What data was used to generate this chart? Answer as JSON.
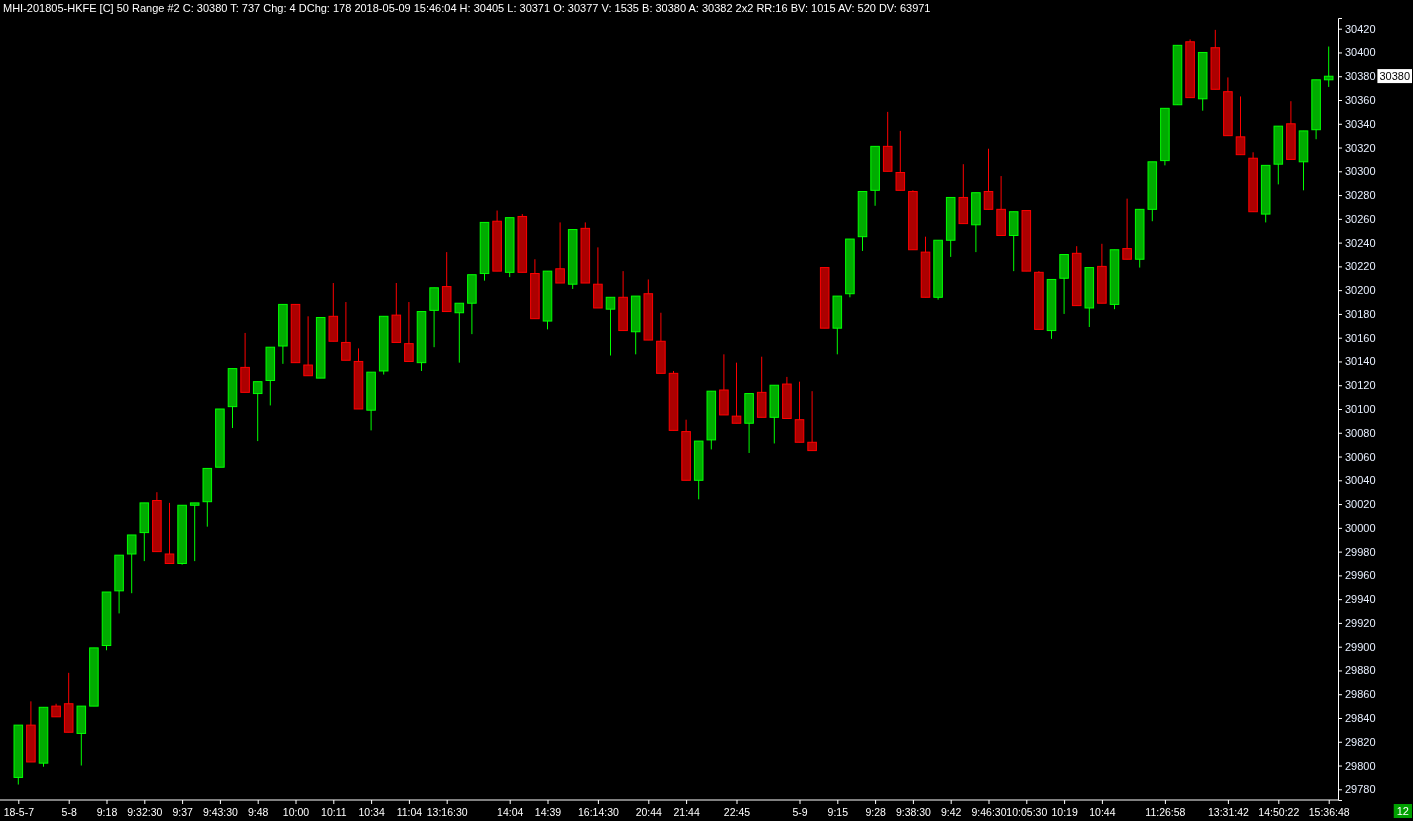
{
  "chart_data": {
    "type": "candlestick",
    "title": "MHI-201805-HKFE [C]  50 Range  #2 C: 30380  T: 737  Chg: 4  DChg: 178  2018-05-09 15:46:04  H: 30405  L: 30371  O: 30377  V: 1535  B: 30380  A: 30382  2x2  RR:16  BV: 1015  AV: 520  DV: 63971",
    "categories": [
      "18-5-7",
      null,
      null,
      null,
      "5-8",
      null,
      null,
      "9:18",
      null,
      null,
      "9:32:30",
      null,
      null,
      "9:37",
      null,
      null,
      "9:43:30",
      null,
      null,
      "9:48",
      null,
      null,
      "10:00",
      null,
      null,
      "10:11",
      null,
      null,
      "10:34",
      null,
      null,
      "11:04",
      null,
      null,
      "13:16:30",
      null,
      null,
      null,
      null,
      "14:04",
      null,
      null,
      "14:39",
      null,
      null,
      null,
      "16:14:30",
      null,
      null,
      null,
      "20:44",
      null,
      null,
      "21:44",
      null,
      null,
      null,
      "22:45",
      null,
      null,
      null,
      null,
      "5-9",
      null,
      null,
      "9:15",
      null,
      null,
      "9:28",
      null,
      null,
      "9:38:30",
      null,
      null,
      "9:42",
      null,
      null,
      "9:46:30",
      null,
      null,
      "10:05:30",
      null,
      null,
      "10:19",
      null,
      null,
      "10:44",
      null,
      null,
      null,
      null,
      "11:26:58",
      null,
      null,
      null,
      null,
      "13:31:42",
      null,
      null,
      null,
      "14:50:22",
      null,
      null,
      null,
      "15:36:48"
    ],
    "ohlc": [
      [
        29790,
        29834,
        29784,
        29834
      ],
      [
        29834,
        29854,
        29803,
        29803
      ],
      [
        29802,
        29849,
        29799,
        29849
      ],
      [
        29850,
        29852,
        29841,
        29841
      ],
      [
        29852,
        29878,
        29828,
        29828
      ],
      [
        29827,
        29850,
        29800,
        29850
      ],
      [
        29850,
        29899,
        29850,
        29899
      ],
      [
        29901,
        29946,
        29897,
        29946
      ],
      [
        29947,
        29977,
        29928,
        29977
      ],
      [
        29978,
        29994,
        29945,
        29994
      ],
      [
        29996,
        30021,
        29972,
        30021
      ],
      [
        30023,
        30030,
        29980,
        29980
      ],
      [
        29978,
        30021,
        29970,
        29970
      ],
      [
        29970,
        30019,
        29969,
        30019
      ],
      [
        30019,
        30021,
        29972,
        30021
      ],
      [
        30022,
        30050,
        30001,
        30050
      ],
      [
        30051,
        30100,
        30051,
        30100
      ],
      [
        30102,
        30134,
        30084,
        30134
      ],
      [
        30135,
        30164,
        30114,
        30114
      ],
      [
        30113,
        30123,
        30073,
        30123
      ],
      [
        30124,
        30152,
        30103,
        30152
      ],
      [
        30153,
        30188,
        30138,
        30188
      ],
      [
        30188,
        30188,
        30139,
        30139
      ],
      [
        30137,
        30178,
        30128,
        30128
      ],
      [
        30126,
        30177,
        30126,
        30177
      ],
      [
        30178,
        30206,
        30157,
        30157
      ],
      [
        30156,
        30190,
        30141,
        30141
      ],
      [
        30140,
        30151,
        30100,
        30100
      ],
      [
        30099,
        30131,
        30082,
        30131
      ],
      [
        30132,
        30178,
        30129,
        30178
      ],
      [
        30179,
        30206,
        30156,
        30156
      ],
      [
        30155,
        30190,
        30140,
        30140
      ],
      [
        30139,
        30182,
        30132,
        30182
      ],
      [
        30183,
        30202,
        30152,
        30202
      ],
      [
        30203,
        30232,
        30182,
        30182
      ],
      [
        30181,
        30189,
        30139,
        30189
      ],
      [
        30189,
        30213,
        30163,
        30213
      ],
      [
        30214,
        30257,
        30208,
        30257
      ],
      [
        30258,
        30267,
        30216,
        30216
      ],
      [
        30215,
        30261,
        30211,
        30261
      ],
      [
        30262,
        30264,
        30215,
        30215
      ],
      [
        30214,
        30226,
        30176,
        30176
      ],
      [
        30174,
        30216,
        30167,
        30216
      ],
      [
        30218,
        30257,
        30206,
        30206
      ],
      [
        30205,
        30251,
        30201,
        30251
      ],
      [
        30252,
        30257,
        30206,
        30206
      ],
      [
        30205,
        30236,
        30185,
        30185
      ],
      [
        30184,
        30194,
        30145,
        30194
      ],
      [
        30194,
        30216,
        30166,
        30166
      ],
      [
        30165,
        30195,
        30146,
        30195
      ],
      [
        30197,
        30209,
        30158,
        30158
      ],
      [
        30157,
        30181,
        30130,
        30130
      ],
      [
        30130,
        30132,
        30082,
        30082
      ],
      [
        30081,
        30091,
        30040,
        30040
      ],
      [
        30040,
        30073,
        30024,
        30073
      ],
      [
        30074,
        30115,
        30066,
        30115
      ],
      [
        30116,
        30146,
        30095,
        30095
      ],
      [
        30094,
        30139,
        30088,
        30088
      ],
      [
        30088,
        30113,
        30063,
        30113
      ],
      [
        30114,
        30144,
        30093,
        30093
      ],
      [
        30093,
        30120,
        30071,
        30120
      ],
      [
        30121,
        30127,
        30092,
        30092
      ],
      [
        30091,
        30123,
        30072,
        30072
      ],
      [
        30072,
        30115,
        30065,
        30065
      ],
      [
        30219,
        30219,
        30168,
        30168
      ],
      [
        30168,
        30195,
        30146,
        30195
      ],
      [
        30197,
        30243,
        30194,
        30243
      ],
      [
        30245,
        30283,
        30233,
        30283
      ],
      [
        30284,
        30321,
        30271,
        30321
      ],
      [
        30321,
        30350,
        30300,
        30300
      ],
      [
        30299,
        30334,
        30284,
        30284
      ],
      [
        30283,
        30284,
        30234,
        30234
      ],
      [
        30232,
        30245,
        30194,
        30194
      ],
      [
        30194,
        30242,
        30192,
        30242
      ],
      [
        30242,
        30278,
        30228,
        30278
      ],
      [
        30278,
        30306,
        30256,
        30256
      ],
      [
        30255,
        30282,
        30232,
        30282
      ],
      [
        30283,
        30319,
        30268,
        30268
      ],
      [
        30268,
        30296,
        30246,
        30246
      ],
      [
        30246,
        30266,
        30216,
        30266
      ],
      [
        30267,
        30267,
        30216,
        30216
      ],
      [
        30215,
        30216,
        30167,
        30167
      ],
      [
        30166,
        30209,
        30159,
        30209
      ],
      [
        30210,
        30230,
        30180,
        30230
      ],
      [
        30231,
        30237,
        30187,
        30187
      ],
      [
        30185,
        30219,
        30169,
        30219
      ],
      [
        30220,
        30239,
        30189,
        30189
      ],
      [
        30188,
        30234,
        30184,
        30234
      ],
      [
        30235,
        30277,
        30226,
        30226
      ],
      [
        30226,
        30268,
        30219,
        30268
      ],
      [
        30268,
        30308,
        30258,
        30308
      ],
      [
        30309,
        30353,
        30305,
        30353
      ],
      [
        30356,
        30406,
        30356,
        30406
      ],
      [
        30409,
        30411,
        30362,
        30362
      ],
      [
        30361,
        30400,
        30351,
        30400
      ],
      [
        30404,
        30419,
        30369,
        30369
      ],
      [
        30367,
        30379,
        30330,
        30330
      ],
      [
        30329,
        30363,
        30314,
        30314
      ],
      [
        30311,
        30316,
        30266,
        30266
      ],
      [
        30264,
        30305,
        30257,
        30305
      ],
      [
        30306,
        30338,
        30289,
        30338
      ],
      [
        30340,
        30359,
        30310,
        30310
      ],
      [
        30308,
        30334,
        30284,
        30334
      ],
      [
        30335,
        30377,
        30327,
        30377
      ],
      [
        30377,
        30405,
        30371,
        30380
      ]
    ],
    "colors": [
      "#00ff00",
      "#ff0000",
      "#00ff00",
      "#ff0000",
      "#ff0000",
      "#00ff00",
      "#00ff00",
      "#00ff00",
      "#00ff00",
      "#00ff00",
      "#00ff00",
      "#ff0000",
      "#ff0000",
      "#00ff00",
      "#00ff00",
      "#00ff00",
      "#00ff00",
      "#00ff00",
      "#ff0000",
      "#00ff00",
      "#00ff00",
      "#00ff00",
      "#ff0000",
      "#ff0000",
      "#00ff00",
      "#ff0000",
      "#ff0000",
      "#ff0000",
      "#00ff00",
      "#00ff00",
      "#ff0000",
      "#ff0000",
      "#00ff00",
      "#00ff00",
      "#ff0000",
      "#00ff00",
      "#00ff00",
      "#00ff00",
      "#ff0000",
      "#00ff00",
      "#ff0000",
      "#ff0000",
      "#00ff00",
      "#ff0000",
      "#00ff00",
      "#ff0000",
      "#ff0000",
      "#00ff00",
      "#ff0000",
      "#00ff00",
      "#ff0000",
      "#ff0000",
      "#ff0000",
      "#ff0000",
      "#00ff00",
      "#00ff00",
      "#ff0000",
      "#ff0000",
      "#00ff00",
      "#ff0000",
      "#00ff00",
      "#ff0000",
      "#ff0000",
      "#ff0000",
      "#ff0000",
      "#00ff00",
      "#00ff00",
      "#00ff00",
      "#00ff00",
      "#ff0000",
      "#ff0000",
      "#ff0000",
      "#ff0000",
      "#00ff00",
      "#00ff00",
      "#ff0000",
      "#00ff00",
      "#ff0000",
      "#ff0000",
      "#00ff00",
      "#ff0000",
      "#ff0000",
      "#00ff00",
      "#00ff00",
      "#ff0000",
      "#00ff00",
      "#ff0000",
      "#00ff00",
      "#ff0000",
      "#00ff00",
      "#00ff00",
      "#00ff00",
      "#00ff00",
      "#ff0000",
      "#00ff00",
      "#ff0000",
      "#ff0000",
      "#ff0000",
      "#ff0000",
      "#00ff00",
      "#00ff00",
      "#ff0000",
      "#00ff00",
      "#00ff00",
      "#00ff00"
    ],
    "ylim": [
      29771,
      30429
    ],
    "yticks": [
      29780,
      29800,
      29820,
      29840,
      29860,
      29880,
      29900,
      29920,
      29940,
      29960,
      29980,
      30000,
      30020,
      30040,
      30060,
      30080,
      30100,
      30120,
      30140,
      30160,
      30180,
      30200,
      30220,
      30240,
      30260,
      30280,
      30300,
      30320,
      30340,
      30360,
      30380,
      30400,
      30420
    ],
    "annotations": [
      "30380",
      "12"
    ]
  }
}
